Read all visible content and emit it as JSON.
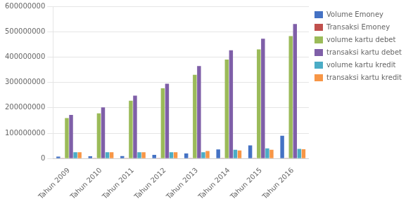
{
  "chart_data": {
    "type": "bar",
    "categories": [
      "Tahun 2009",
      "Tahun 2010",
      "Tahun 2011",
      "Tahun 2012",
      "Tahun 2013",
      "Tahun 2014",
      "Tahun 2015",
      "Tahun 2016"
    ],
    "series": [
      {
        "name": "Volume Emoney",
        "color": "#4472C4",
        "values": [
          8000000,
          9000000,
          10000000,
          15000000,
          20000000,
          36000000,
          52000000,
          90000000
        ]
      },
      {
        "name": "Transaksi Emoney",
        "color": "#C0504D",
        "values": [
          2000000,
          2000000,
          2000000,
          2000000,
          2000000,
          2000000,
          2000000,
          2000000
        ]
      },
      {
        "name": "volume kartu debet",
        "color": "#9BBB59",
        "values": [
          160000000,
          178000000,
          228000000,
          277000000,
          330000000,
          390000000,
          430000000,
          483000000
        ]
      },
      {
        "name": "transaksi kartu debet",
        "color": "#7F5FA8",
        "values": [
          172000000,
          202000000,
          248000000,
          295000000,
          365000000,
          427000000,
          472000000,
          530000000
        ]
      },
      {
        "name": "volume kartu kredit",
        "color": "#4BACC6",
        "values": [
          25000000,
          25000000,
          25000000,
          25000000,
          25000000,
          35000000,
          40000000,
          38000000
        ]
      },
      {
        "name": "transaksi kartu kredit",
        "color": "#F79646",
        "values": [
          25000000,
          25000000,
          25000000,
          25000000,
          30000000,
          32000000,
          35000000,
          37000000
        ]
      }
    ],
    "ylim": [
      0,
      600000000
    ],
    "yticks": [
      0,
      100000000,
      200000000,
      300000000,
      400000000,
      500000000,
      600000000
    ],
    "grid": true,
    "legend": "right"
  }
}
